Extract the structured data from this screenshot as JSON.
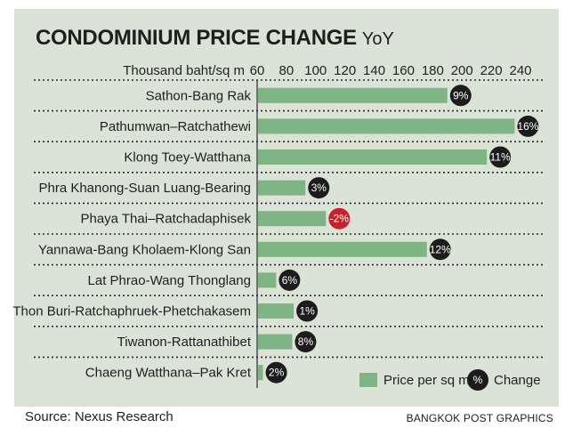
{
  "chart_data": {
    "type": "bar",
    "orientation": "horizontal",
    "title": "CONDOMINIUM PRICE CHANGE",
    "subtitle": "YoY",
    "xlabel": "Thousand baht/sq m",
    "xlim": [
      60,
      240
    ],
    "xticks": [
      "60",
      "80",
      "100",
      "120",
      "140",
      "160",
      "180",
      "200",
      "220",
      "240"
    ],
    "categories": [
      "Sathon-Bang Rak",
      "Pathumwan–Ratchathewi",
      "Klong Toey-Watthana",
      "Phra Khanong-Suan Luang-Bearing",
      "Phaya Thai–Ratchadaphisek",
      "Yannawa-Bang Kholaem-Klong San",
      "Lat Phrao-Wang Thonglang",
      "Thon Buri-Ratchaphruek-Phetchakasem",
      "Tiwanon-Rattanathibet",
      "Chaeng Watthana–Pak Kret"
    ],
    "series": [
      {
        "name": "Price per sq m",
        "values": [
          190,
          236,
          217,
          93,
          107,
          176,
          73,
          85,
          84,
          64
        ]
      }
    ],
    "change_labels": [
      "9%",
      "16%",
      "11%",
      "3%",
      "-2%",
      "12%",
      "6%",
      "1%",
      "8%",
      "2%"
    ],
    "change_values": [
      9,
      16,
      11,
      3,
      -2,
      12,
      6,
      1,
      8,
      2
    ],
    "legend": {
      "bar_label": "Price per sq m",
      "badge_symbol": "%",
      "badge_label": "Change",
      "position": "bottom-right"
    },
    "grid": "dotted row separators",
    "colors": {
      "background": "#dbe3d7",
      "bar": "#7fb485",
      "badge_positive": "#1c1c1c",
      "badge_negative": "#c8202c",
      "badge_text": "#ffffff"
    }
  },
  "footer": {
    "source": "Source: Nexus Research",
    "credit": "BANGKOK POST GRAPHICS"
  }
}
